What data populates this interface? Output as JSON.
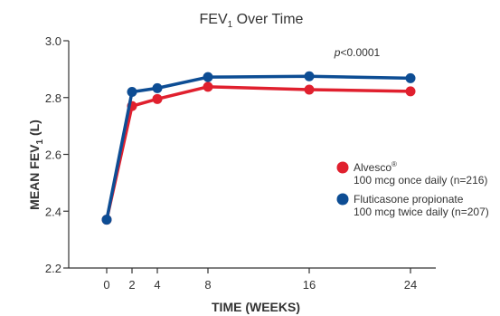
{
  "chart_data": {
    "type": "line",
    "title": "FEV",
    "title_subscript": "1",
    "title_suffix": " Over Time",
    "xlabel": "TIME (WEEKS)",
    "ylabel": "MEAN FEV",
    "ylabel_subscript": "1",
    "ylabel_suffix": " (L)",
    "xlim": [
      -3,
      26
    ],
    "ylim": [
      2.2,
      3.0
    ],
    "x_ticks": [
      0,
      2,
      4,
      8,
      16,
      24
    ],
    "y_ticks": [
      2.2,
      2.4,
      2.6,
      2.8,
      3.0
    ],
    "y_tick_labels": [
      "2.2",
      "2.4",
      "2.6",
      "2.8",
      "3.0"
    ],
    "grid": false,
    "legend_position": "right",
    "annotation": {
      "italic": "p",
      "text": "<0.0001",
      "x": 16,
      "y": 2.94
    },
    "series": [
      {
        "name": "Alvesco",
        "name_sup": "®",
        "detail": "100 mcg once daily (n=216)",
        "color": "#e0202e",
        "x": [
          0,
          2,
          4,
          8,
          16,
          24
        ],
        "y": [
          2.37,
          2.77,
          2.795,
          2.838,
          2.828,
          2.822
        ]
      },
      {
        "name": "Fluticasone propionate",
        "detail": "100 mcg twice daily (n=207)",
        "color": "#0d4d94",
        "x": [
          0,
          2,
          4,
          8,
          16,
          24
        ],
        "y": [
          2.37,
          2.82,
          2.833,
          2.872,
          2.875,
          2.868
        ]
      }
    ]
  }
}
